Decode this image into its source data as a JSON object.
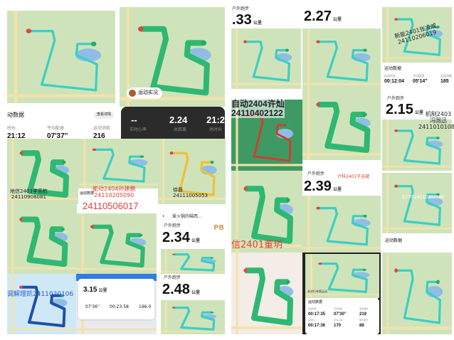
{
  "colors": {
    "map_green": "#cfe3bb",
    "route_green": "#2fb872",
    "route_cyan": "#3cd6d0",
    "route_red": "#d63a2f",
    "route_yellow": "#f0c030",
    "lake": "#8fbde6"
  },
  "tile_a": {
    "section": "动数据",
    "detail": "查看详情",
    "labels": [
      "时长",
      "平均配速",
      "运动消耗"
    ],
    "values": [
      "21:12",
      "07'37''",
      "216"
    ],
    "unit_kcal": "千卡"
  },
  "tile_b": {
    "chip": "运动实况",
    "stats": [
      {
        "value": "--",
        "label": "实时心率"
      },
      {
        "value": "2.24",
        "label": "总距离"
      },
      {
        "value": "21:2",
        "label": "总时长"
      }
    ]
  },
  "tile_c": {
    "kind": "户外跑步",
    "distance": ".33",
    "unit": "公里"
  },
  "tile_d": {
    "distance": "2.27",
    "unit": "公里"
  },
  "tile_e": {
    "watermark": [
      "新能2401张凌威",
      "24110206019"
    ],
    "section": "运动数据",
    "labels": [
      "运动时长",
      "平均配速",
      "运动消耗"
    ],
    "values": [
      "00:12:04",
      "05'14''",
      "185"
    ]
  },
  "tile_e2": {
    "kind": "户外跑步",
    "distance": "2.15",
    "unit": "公里",
    "watermark": [
      "机制2403",
      "冯国迅",
      "24110101085"
    ]
  },
  "tile_e3": {
    "watermark": "王兴华24110202086"
  },
  "tile_f": {
    "watermark": [
      "地信2403李竞航",
      "24110908081"
    ]
  },
  "tile_g": {
    "watermark": [
      "能动2404孙建鹏",
      "24110205090"
    ],
    "section": "运动数据",
    "detail": "查看详情",
    "red_id": "24110506017"
  },
  "tile_h": {
    "watermark": [
      "徐磊",
      "24111005053"
    ]
  },
  "tile_i": {
    "watermark": [
      "自动2404许灿",
      "24110402122"
    ]
  },
  "tile_k": {
    "watermark": "信2401董玥"
  },
  "tile_l": {
    "kind": "户外跑步",
    "distance": "2.39",
    "unit": "公里",
    "watermark": "计科2401于吉斌"
  },
  "tile_o": {
    "user": "爱火锅的喵西...",
    "kind": "户外跑步",
    "distance": "2.34",
    "unit": "公里",
    "badge": "PB"
  },
  "tile_p": {
    "watermark": "调解理凯2411020106"
  },
  "tile_q": {
    "distance": "3.15",
    "unit": "公里",
    "stats": [
      "07'36''",
      "00:23:58",
      "196.0"
    ]
  },
  "tile_r": {
    "kind": "户外跑步",
    "distance": "2.48",
    "unit": "公里"
  },
  "tile_t": {
    "hint": "未进行有氧运动",
    "section": "运动数据",
    "labels": [
      "运动时长",
      "平均配速",
      "运动消耗",
      "总时长",
      "平均心率",
      "累计爬升"
    ],
    "values": [
      "00:17:35",
      "07'30''",
      "219",
      "00:17:36",
      "170",
      "88"
    ]
  },
  "tile_u": {
    "section": "运动数据"
  }
}
